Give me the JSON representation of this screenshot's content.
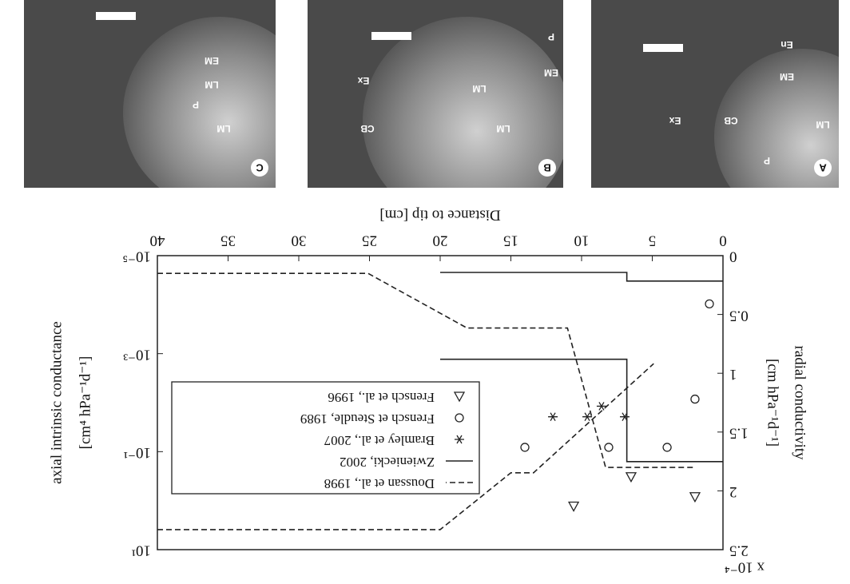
{
  "chart_data": {
    "type": "line",
    "xlabel": "Distance to tip [cm]",
    "ylabel": [
      "radial conductivity",
      "[cm hPa⁻¹d⁻¹]"
    ],
    "y_multiplier": "x 10⁻⁴",
    "y2label": [
      "axial intrinsic conductance",
      "[cm⁴ hPa⁻¹d⁻¹]"
    ],
    "xlim": [
      0,
      40
    ],
    "xticks": [
      0,
      5,
      10,
      15,
      20,
      25,
      30,
      35,
      40
    ],
    "ylim": [
      0,
      2.5
    ],
    "yticks": [
      0,
      0.5,
      1,
      1.5,
      2,
      2.5
    ],
    "y2lim": [
      1e-05,
      10
    ],
    "y2scale": "log",
    "y2ticks": [
      {
        "value": 1e-05,
        "label": "10⁻⁵"
      },
      {
        "value": 0.001,
        "label": "10⁻³"
      },
      {
        "value": 0.1,
        "label": "10⁻¹"
      },
      {
        "value": 10,
        "label": "10¹"
      }
    ],
    "legend": "upper right",
    "series": [
      {
        "name": "Doussan et al., 1998",
        "color": "#222222",
        "line_style": "dashed",
        "axis": "y2",
        "x": [
          40,
          25.1,
          18.1,
          11,
          8.3,
          2,
          null,
          40,
          20,
          15,
          13.4,
          4.9
        ],
        "values": [
          2.3e-05,
          2.3e-05,
          0.0003,
          0.0003,
          0.21,
          0.21,
          null,
          3.9,
          3.9,
          0.27,
          0.27,
          0.0016
        ]
      },
      {
        "name": "Zwieniecki, 2002",
        "color": "#222222",
        "line_style": "solid",
        "axis": "y2",
        "x": [
          0,
          6.8,
          6.8,
          20,
          null,
          0,
          6.8,
          6.8,
          20
        ],
        "values": [
          0.16,
          0.16,
          0.0013,
          0.0013,
          null,
          3.3e-05,
          3.3e-05,
          2.2e-05,
          2.2e-05
        ]
      },
      {
        "name": "Bramley et al., 2007",
        "color": "#222222",
        "marker": "star",
        "x": [
          6.95,
          8.59,
          9.6,
          12.03
        ],
        "values": [
          1.37,
          1.28,
          1.37,
          1.37
        ]
      },
      {
        "name": "Frensch et Steudle, 1989",
        "color": "#222222",
        "marker": "circle",
        "x": [
          0.96,
          1.98,
          3.95,
          8.08,
          14.01
        ],
        "values": [
          0.41,
          1.22,
          1.63,
          1.63,
          1.63
        ]
      },
      {
        "name": "Frensch et al., 1996",
        "color": "#222222",
        "marker": "triangle",
        "x": [
          1.98,
          6.5,
          10.56
        ],
        "values": [
          2.05,
          1.88,
          2.13
        ]
      }
    ]
  },
  "panels": [
    {
      "label": "A",
      "annotations": [
        "LM",
        "P",
        "CB",
        "Ex",
        "EM",
        "En"
      ]
    },
    {
      "label": "B",
      "annotations": [
        "LM",
        "LM",
        "CB",
        "Ex",
        "EM",
        "P"
      ]
    },
    {
      "label": "C",
      "annotations": [
        "LM",
        "LM",
        "EM",
        "P"
      ]
    }
  ]
}
